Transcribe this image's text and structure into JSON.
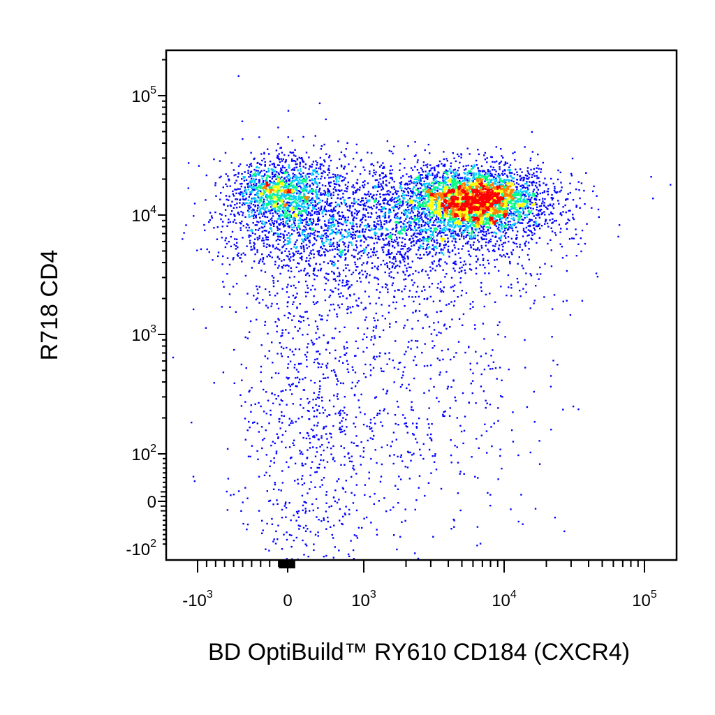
{
  "chart_data": {
    "type": "scatter",
    "subtype": "flow-cytometry density dot plot",
    "xlabel": "BD OptiBuild™ RY610 CD184 (CXCR4)",
    "ylabel": "R718 CD4",
    "x_scale": "biexponential",
    "y_scale": "biexponential",
    "x_ticks": [
      {
        "value": -1000,
        "base": "-10",
        "exp": "3"
      },
      {
        "value": 0,
        "base": "0",
        "exp": ""
      },
      {
        "value": 1000,
        "base": "10",
        "exp": "3"
      },
      {
        "value": 10000,
        "base": "10",
        "exp": "4"
      },
      {
        "value": 100000,
        "base": "10",
        "exp": "5"
      }
    ],
    "y_ticks": [
      {
        "value": 100000,
        "base": "10",
        "exp": "5"
      },
      {
        "value": 10000,
        "base": "10",
        "exp": "4"
      },
      {
        "value": 1000,
        "base": "10",
        "exp": "3"
      },
      {
        "value": 100,
        "base": "10",
        "exp": "2"
      },
      {
        "value": 0,
        "base": "0",
        "exp": ""
      },
      {
        "value": -100,
        "base": "-10",
        "exp": "2"
      }
    ],
    "density_colors": [
      "#0000ff",
      "#00c8ff",
      "#00ff80",
      "#ffff00",
      "#ff8000",
      "#ff0000"
    ],
    "populations": [
      {
        "name": "",
        "x_center": 5000,
        "y_center": 13000,
        "relative_size": 0.55,
        "peak_density": "red"
      },
      {
        "name": "",
        "x_center": -30,
        "y_center": 15000,
        "relative_size": 0.25,
        "peak_density": "green"
      },
      {
        "name": "",
        "x_center": 200,
        "y_center": 500,
        "relative_size": 0.2,
        "peak_density": "blue"
      }
    ],
    "grid": false,
    "legend": "none"
  }
}
